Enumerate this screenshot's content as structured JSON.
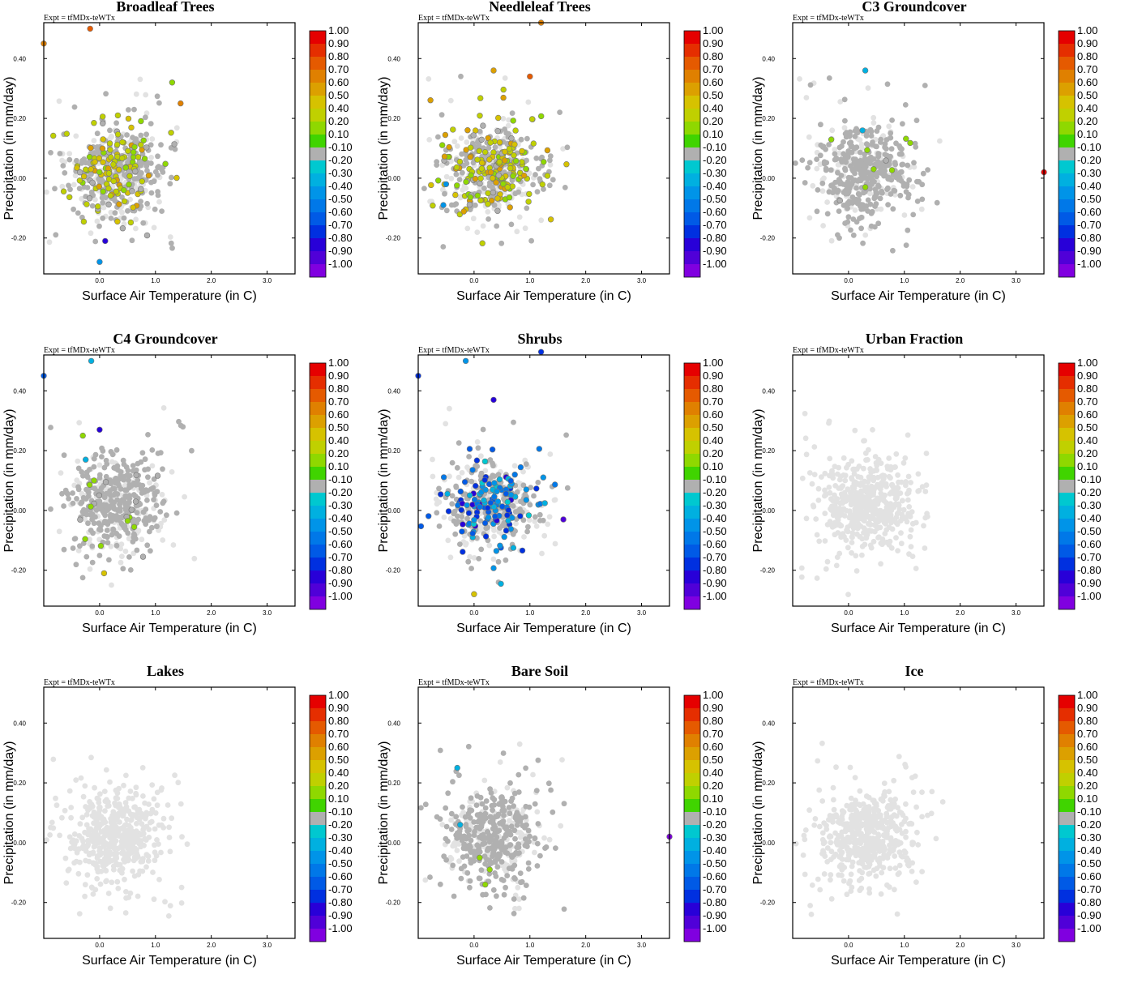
{
  "figure": {
    "experiment_label": "Expt = tfMDx-teWTx",
    "colorscale": {
      "labels": [
        "1.00",
        "0.90",
        "0.80",
        "0.70",
        "0.60",
        "0.50",
        "0.40",
        "0.20",
        "0.10",
        "-0.10",
        "-0.20",
        "-0.30",
        "-0.40",
        "-0.50",
        "-0.60",
        "-0.70",
        "-0.80",
        "-0.90",
        "-1.00"
      ],
      "colors": [
        "#e50000",
        "#e52e00",
        "#e55a00",
        "#e08000",
        "#dca000",
        "#d6c200",
        "#c0d000",
        "#8fd800",
        "#40d400",
        "#b0b0b0",
        "#00c8d0",
        "#00b0e0",
        "#0094e8",
        "#0078e8",
        "#005ae6",
        "#0030e0",
        "#2800d8",
        "#5000d8",
        "#8000e0"
      ]
    }
  },
  "chart_data": [
    {
      "type": "scatter",
      "title": "Broadleaf Trees",
      "xlabel": "Surface Air Temperature (in C)",
      "ylabel": "Precipitation (in mm/day)",
      "xlim": [
        -1.0,
        3.5
      ],
      "ylim": [
        -0.32,
        0.52
      ],
      "xticks": [
        "0.0",
        "1.0",
        "2.0",
        "3.0"
      ],
      "yticks": [
        "-0.20",
        "0.00",
        "0.20",
        "0.40"
      ],
      "seed": 11,
      "colored_fraction": 0.35,
      "colored_highlights": [
        {
          "x": -0.17,
          "y": 0.5,
          "v": 0.72
        },
        {
          "x": -1.0,
          "y": 0.45,
          "v": 0.65
        },
        {
          "x": 1.3,
          "y": 0.32,
          "v": 0.15
        },
        {
          "x": 1.45,
          "y": 0.25,
          "v": 0.66
        },
        {
          "x": 0.1,
          "y": -0.21,
          "v": -0.72
        },
        {
          "x": 0.0,
          "y": -0.28,
          "v": -0.3
        }
      ],
      "value_range": [
        0.05,
        0.55
      ]
    },
    {
      "type": "scatter",
      "title": "Needleleaf Trees",
      "xlabel": "Surface Air Temperature (in C)",
      "ylabel": "Precipitation (in mm/day)",
      "xlim": [
        -1.0,
        3.5
      ],
      "ylim": [
        -0.32,
        0.52
      ],
      "xticks": [
        "0.0",
        "1.0",
        "2.0",
        "3.0"
      ],
      "yticks": [
        "-0.20",
        "0.00",
        "0.20",
        "0.40"
      ],
      "seed": 23,
      "colored_fraction": 0.5,
      "colored_highlights": [
        {
          "x": 1.2,
          "y": 0.52,
          "v": 0.65
        },
        {
          "x": 1.0,
          "y": 0.34,
          "v": 0.75
        },
        {
          "x": 0.35,
          "y": 0.36,
          "v": 0.5
        },
        {
          "x": -0.5,
          "y": -0.02,
          "v": -0.3
        },
        {
          "x": -0.55,
          "y": -0.09,
          "v": -0.3
        }
      ],
      "value_range": [
        0.05,
        0.6
      ]
    },
    {
      "type": "scatter",
      "title": "C3 Groundcover",
      "xlabel": "Surface Air Temperature (in C)",
      "ylabel": "Precipitation (in mm/day)",
      "xlim": [
        -1.0,
        3.5
      ],
      "ylim": [
        -0.32,
        0.52
      ],
      "xticks": [
        "0.0",
        "1.0",
        "2.0",
        "3.0"
      ],
      "yticks": [
        "-0.20",
        "0.00",
        "0.20",
        "0.40"
      ],
      "seed": 37,
      "colored_fraction": 0.02,
      "colored_highlights": [
        {
          "x": 0.3,
          "y": 0.36,
          "v": -0.2
        },
        {
          "x": 0.25,
          "y": 0.16,
          "v": -0.25
        },
        {
          "x": 3.5,
          "y": 0.02,
          "v": 0.95
        },
        {
          "x": 0.3,
          "y": -0.03,
          "v": 0.12
        },
        {
          "x": 0.45,
          "y": 0.03,
          "v": 0.12
        }
      ],
      "value_range": [
        0.05,
        0.2
      ]
    },
    {
      "type": "scatter",
      "title": "C4 Groundcover",
      "xlabel": "Surface Air Temperature (in C)",
      "ylabel": "Precipitation (in mm/day)",
      "xlim": [
        -1.0,
        3.5
      ],
      "ylim": [
        -0.32,
        0.52
      ],
      "xticks": [
        "0.0",
        "1.0",
        "2.0",
        "3.0"
      ],
      "yticks": [
        "-0.20",
        "0.00",
        "0.20",
        "0.40"
      ],
      "seed": 41,
      "colored_fraction": 0.05,
      "colored_highlights": [
        {
          "x": -0.15,
          "y": 0.5,
          "v": -0.25
        },
        {
          "x": -1.0,
          "y": 0.45,
          "v": -0.5
        },
        {
          "x": 0.0,
          "y": 0.27,
          "v": -0.72
        },
        {
          "x": -0.25,
          "y": 0.17,
          "v": -0.25
        },
        {
          "x": 0.08,
          "y": -0.21,
          "v": 0.45
        },
        {
          "x": -0.1,
          "y": 0.1,
          "v": 0.12
        },
        {
          "x": -0.3,
          "y": 0.25,
          "v": 0.12
        }
      ],
      "value_range": [
        0.05,
        0.2
      ]
    },
    {
      "type": "scatter",
      "title": "Shrubs",
      "xlabel": "Surface Air Temperature (in C)",
      "ylabel": "Precipitation (in mm/day)",
      "xlim": [
        -1.0,
        3.5
      ],
      "ylim": [
        -0.32,
        0.52
      ],
      "xticks": [
        "0.0",
        "1.0",
        "2.0",
        "3.0"
      ],
      "yticks": [
        "-0.20",
        "0.00",
        "0.20",
        "0.40"
      ],
      "seed": 53,
      "colored_fraction": 0.42,
      "colored_highlights": [
        {
          "x": -0.15,
          "y": 0.5,
          "v": -0.3
        },
        {
          "x": -1.0,
          "y": 0.45,
          "v": -0.6
        },
        {
          "x": 1.2,
          "y": 0.53,
          "v": -0.6
        },
        {
          "x": 0.35,
          "y": 0.37,
          "v": -0.75
        },
        {
          "x": 1.6,
          "y": -0.03,
          "v": -0.85
        },
        {
          "x": 0.0,
          "y": -0.28,
          "v": 0.45
        }
      ],
      "value_range": [
        -0.75,
        -0.15
      ]
    },
    {
      "type": "scatter",
      "title": "Urban Fraction",
      "xlabel": "Surface Air Temperature (in C)",
      "ylabel": "Precipitation (in mm/day)",
      "xlim": [
        -1.0,
        3.5
      ],
      "ylim": [
        -0.32,
        0.52
      ],
      "xticks": [
        "0.0",
        "1.0",
        "2.0",
        "3.0"
      ],
      "yticks": [
        "-0.20",
        "0.00",
        "0.20",
        "0.40"
      ],
      "seed": 61,
      "colored_fraction": 0.0,
      "colored_highlights": [],
      "value_range": [
        0,
        0
      ],
      "all_light": true
    },
    {
      "type": "scatter",
      "title": "Lakes",
      "xlabel": "Surface Air Temperature (in C)",
      "ylabel": "Precipitation (in mm/day)",
      "xlim": [
        -1.0,
        3.5
      ],
      "ylim": [
        -0.32,
        0.52
      ],
      "xticks": [
        "0.0",
        "1.0",
        "2.0",
        "3.0"
      ],
      "yticks": [
        "-0.20",
        "0.00",
        "0.20",
        "0.40"
      ],
      "seed": 71,
      "colored_fraction": 0.0,
      "colored_highlights": [],
      "value_range": [
        0,
        0
      ],
      "all_light": true
    },
    {
      "type": "scatter",
      "title": "Bare Soil",
      "xlabel": "Surface Air Temperature (in C)",
      "ylabel": "Precipitation (in mm/day)",
      "xlim": [
        -1.0,
        3.5
      ],
      "ylim": [
        -0.32,
        0.52
      ],
      "xticks": [
        "0.0",
        "1.0",
        "2.0",
        "3.0"
      ],
      "yticks": [
        "-0.20",
        "0.00",
        "0.20",
        "0.40"
      ],
      "seed": 83,
      "colored_fraction": 0.0,
      "colored_highlights": [
        {
          "x": -0.3,
          "y": 0.25,
          "v": -0.25
        },
        {
          "x": -0.25,
          "y": 0.06,
          "v": -0.25
        },
        {
          "x": 0.1,
          "y": -0.05,
          "v": 0.12
        },
        {
          "x": 0.28,
          "y": -0.09,
          "v": 0.12
        },
        {
          "x": 0.2,
          "y": -0.14,
          "v": 0.12
        },
        {
          "x": 3.5,
          "y": 0.02,
          "v": -0.9
        }
      ],
      "value_range": [
        0,
        0
      ]
    },
    {
      "type": "scatter",
      "title": "Ice",
      "xlabel": "Surface Air Temperature (in C)",
      "ylabel": "Precipitation (in mm/day)",
      "xlim": [
        -1.0,
        3.5
      ],
      "ylim": [
        -0.32,
        0.52
      ],
      "xticks": [
        "0.0",
        "1.0",
        "2.0",
        "3.0"
      ],
      "yticks": [
        "-0.20",
        "0.00",
        "0.20",
        "0.40"
      ],
      "seed": 97,
      "colored_fraction": 0.0,
      "colored_highlights": [],
      "value_range": [
        0,
        0
      ],
      "all_light": true
    }
  ]
}
